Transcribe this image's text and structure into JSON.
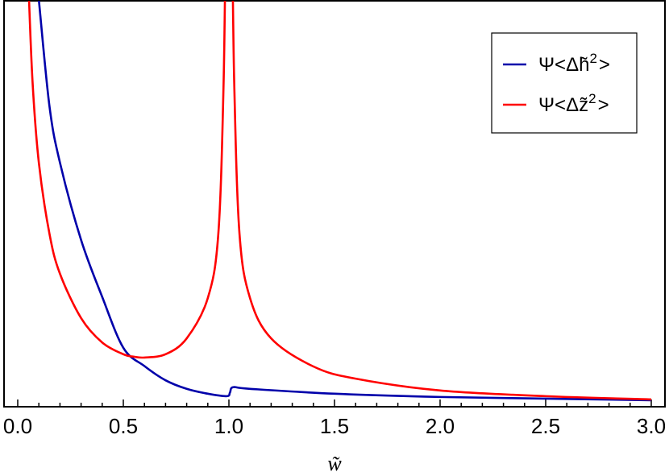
{
  "chart_data": {
    "type": "line",
    "title": "",
    "xlabel": "w̃",
    "ylabel": "",
    "xlim": [
      0,
      3
    ],
    "ylim": [
      0,
      100
    ],
    "y_axis_note": "",
    "x_ticks": [
      "0.0",
      "0.5",
      "1.0",
      "1.5",
      "2.0",
      "2.5",
      "3.0"
    ],
    "x_tick_values": [
      0,
      0.5,
      1.0,
      1.5,
      2.0,
      2.5,
      3.0
    ],
    "grid": false,
    "legend_position": "top-right",
    "series": [
      {
        "name": "Ψ<Δh̃²>",
        "legend_main": "Ψ<Δh̃",
        "legend_sup": "2",
        "legend_end": ">",
        "color": "#0000aa",
        "x": [
          0.09,
          0.1,
          0.15,
          0.2,
          0.3,
          0.4,
          0.5,
          0.6,
          0.7,
          0.8,
          0.9,
          0.99,
          1.005,
          1.02,
          1.1,
          1.5,
          2.0,
          2.5,
          3.0
        ],
        "y": [
          105,
          100,
          74,
          60,
          41,
          27,
          14.5,
          10,
          6.5,
          4.4,
          3.2,
          2.6,
          3.5,
          4.8,
          4.4,
          3.2,
          2.4,
          2.0,
          1.6
        ]
      },
      {
        "name": "Ψ<Δz̃²>",
        "legend_main": "Ψ<Δz̃",
        "legend_sup": "2",
        "legend_end": ">",
        "color": "#ff0000",
        "x": [
          0.05,
          0.07,
          0.1,
          0.15,
          0.2,
          0.3,
          0.4,
          0.5,
          0.55,
          0.6,
          0.7,
          0.8,
          0.9,
          0.95,
          0.975,
          0.99,
          1.01,
          1.025,
          1.05,
          1.1,
          1.2,
          1.4,
          1.6,
          2.0,
          2.5,
          3.0
        ],
        "y": [
          105,
          80,
          60,
          42.6,
          32.7,
          21.8,
          15.8,
          12.9,
          12.3,
          12.1,
          12.9,
          16.8,
          26.7,
          42.6,
          80,
          130,
          130,
          80,
          42.6,
          26.7,
          16.8,
          9.9,
          6.9,
          4.0,
          2.6,
          1.8
        ]
      }
    ]
  }
}
